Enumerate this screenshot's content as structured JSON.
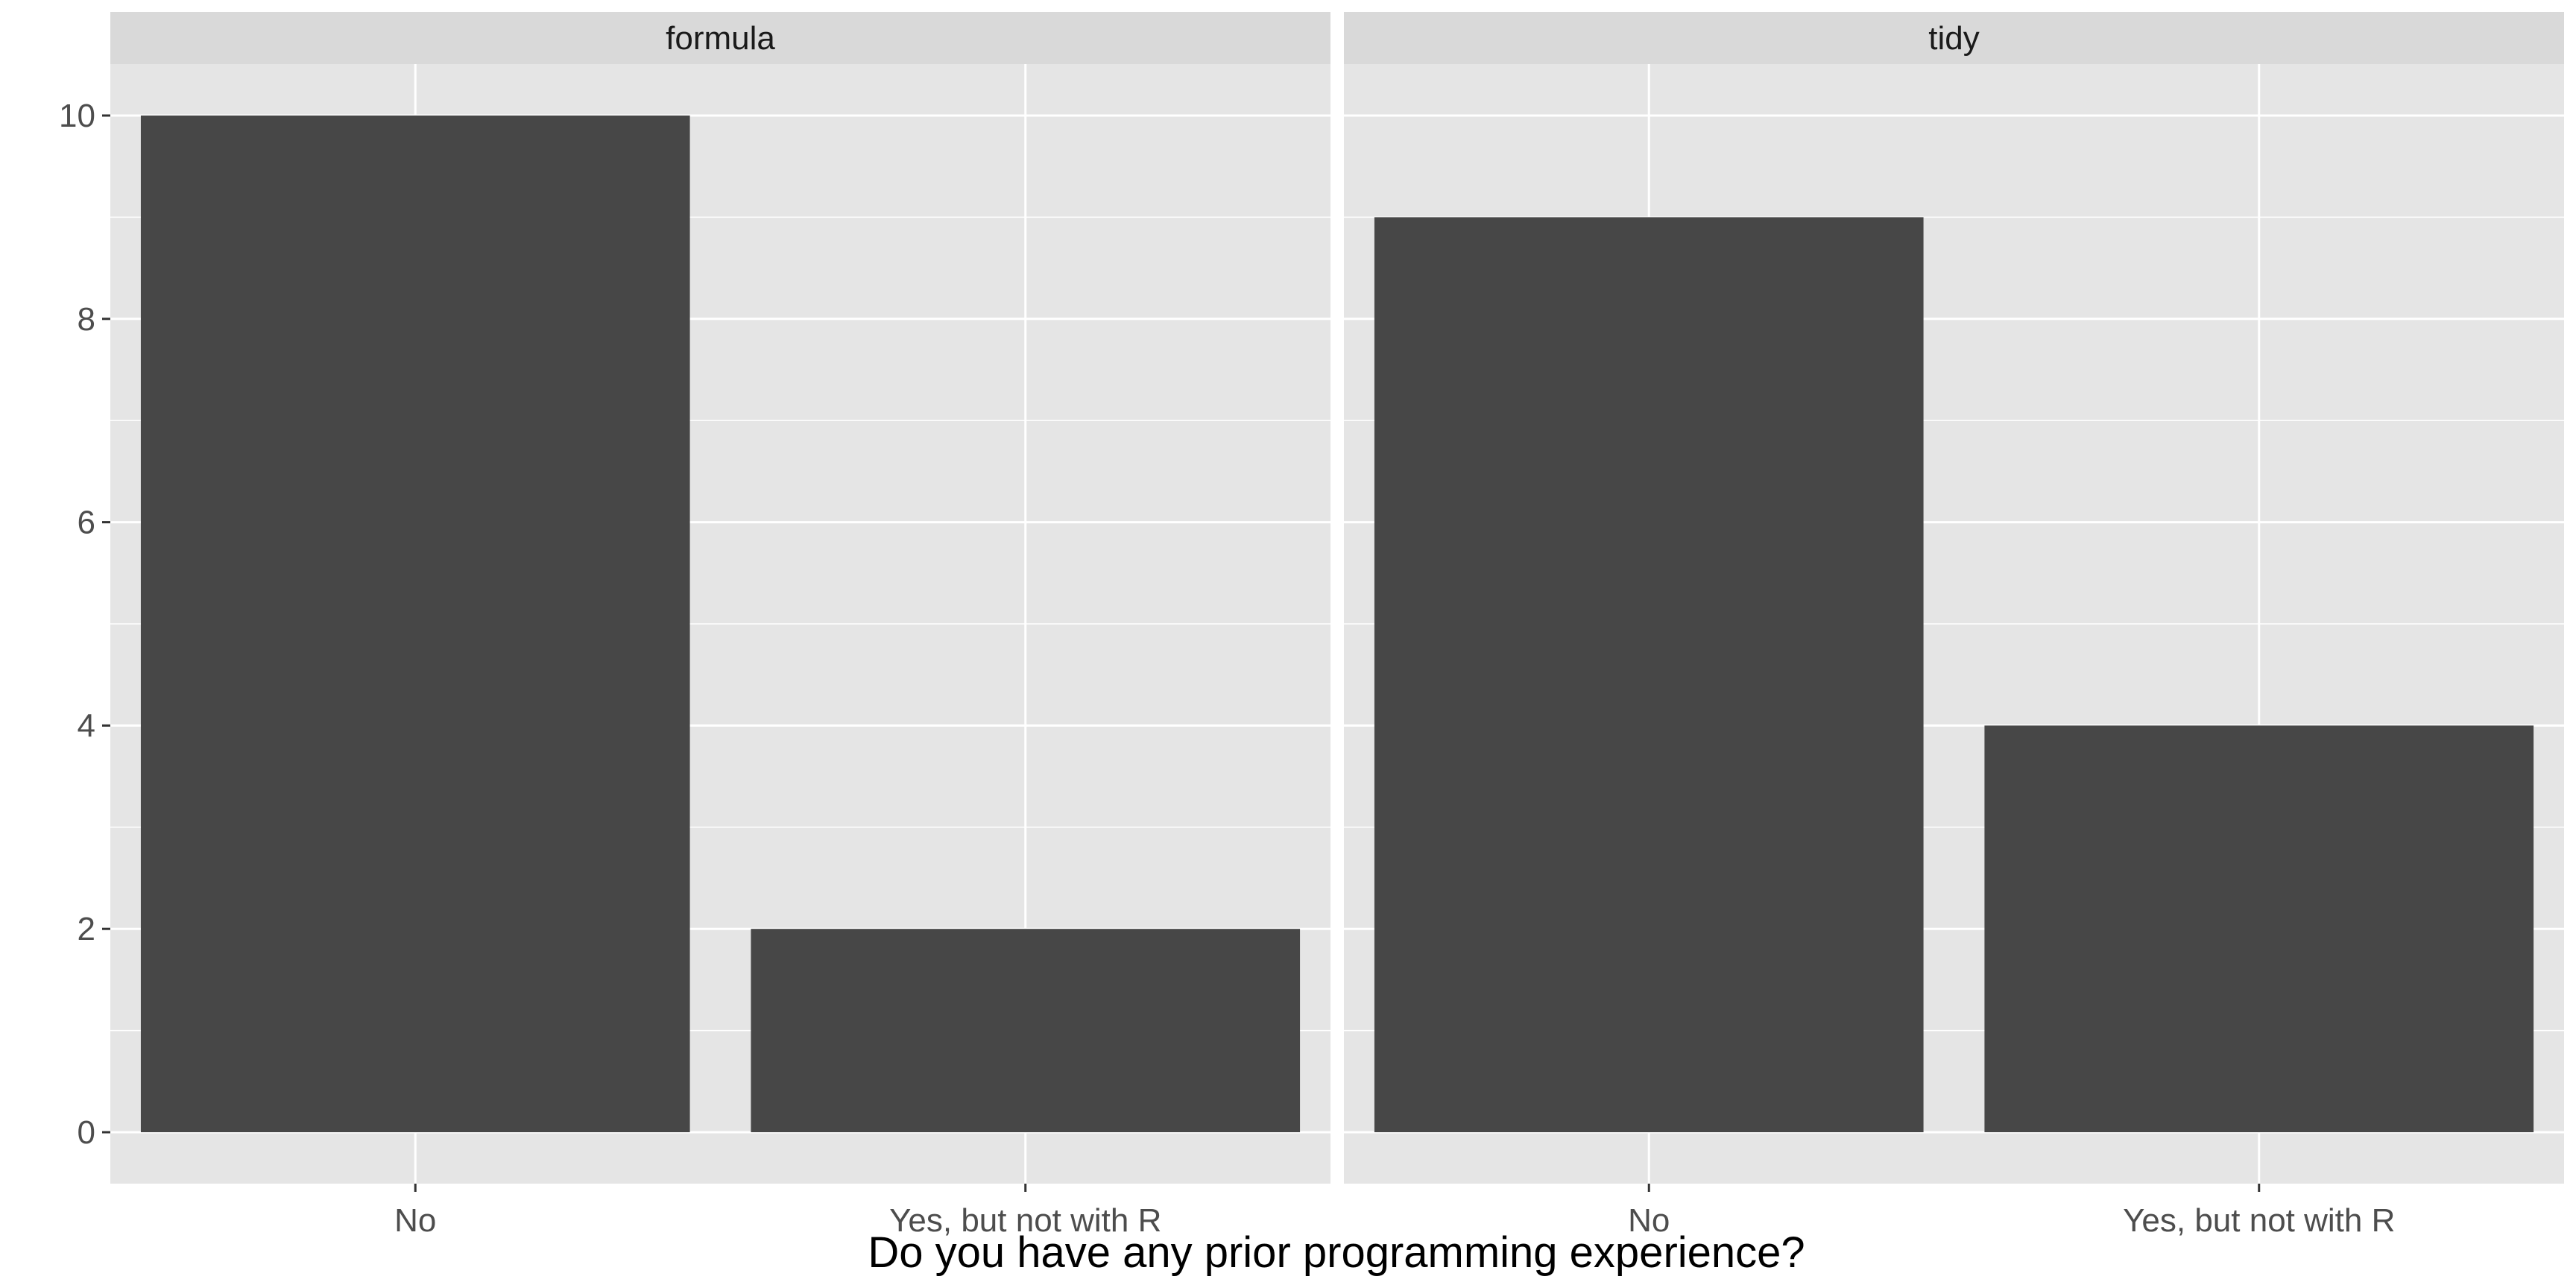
{
  "chart_data": {
    "type": "bar",
    "facet": true,
    "xlabel": "Do you have any prior programming experience?",
    "ylabel": "",
    "ylim": [
      0,
      10.5
    ],
    "yticks": [
      0,
      2,
      4,
      6,
      8,
      10
    ],
    "categories": [
      "No",
      "Yes, but not with R"
    ],
    "panels": [
      {
        "name": "formula",
        "values": [
          10,
          2
        ]
      },
      {
        "name": "tidy",
        "values": [
          9,
          4
        ]
      }
    ],
    "grid": true,
    "colors": {
      "panel_bg": "#e5e5e5",
      "strip_bg": "#d9d9d9",
      "grid": "#ffffff",
      "bar": "#474747"
    }
  }
}
